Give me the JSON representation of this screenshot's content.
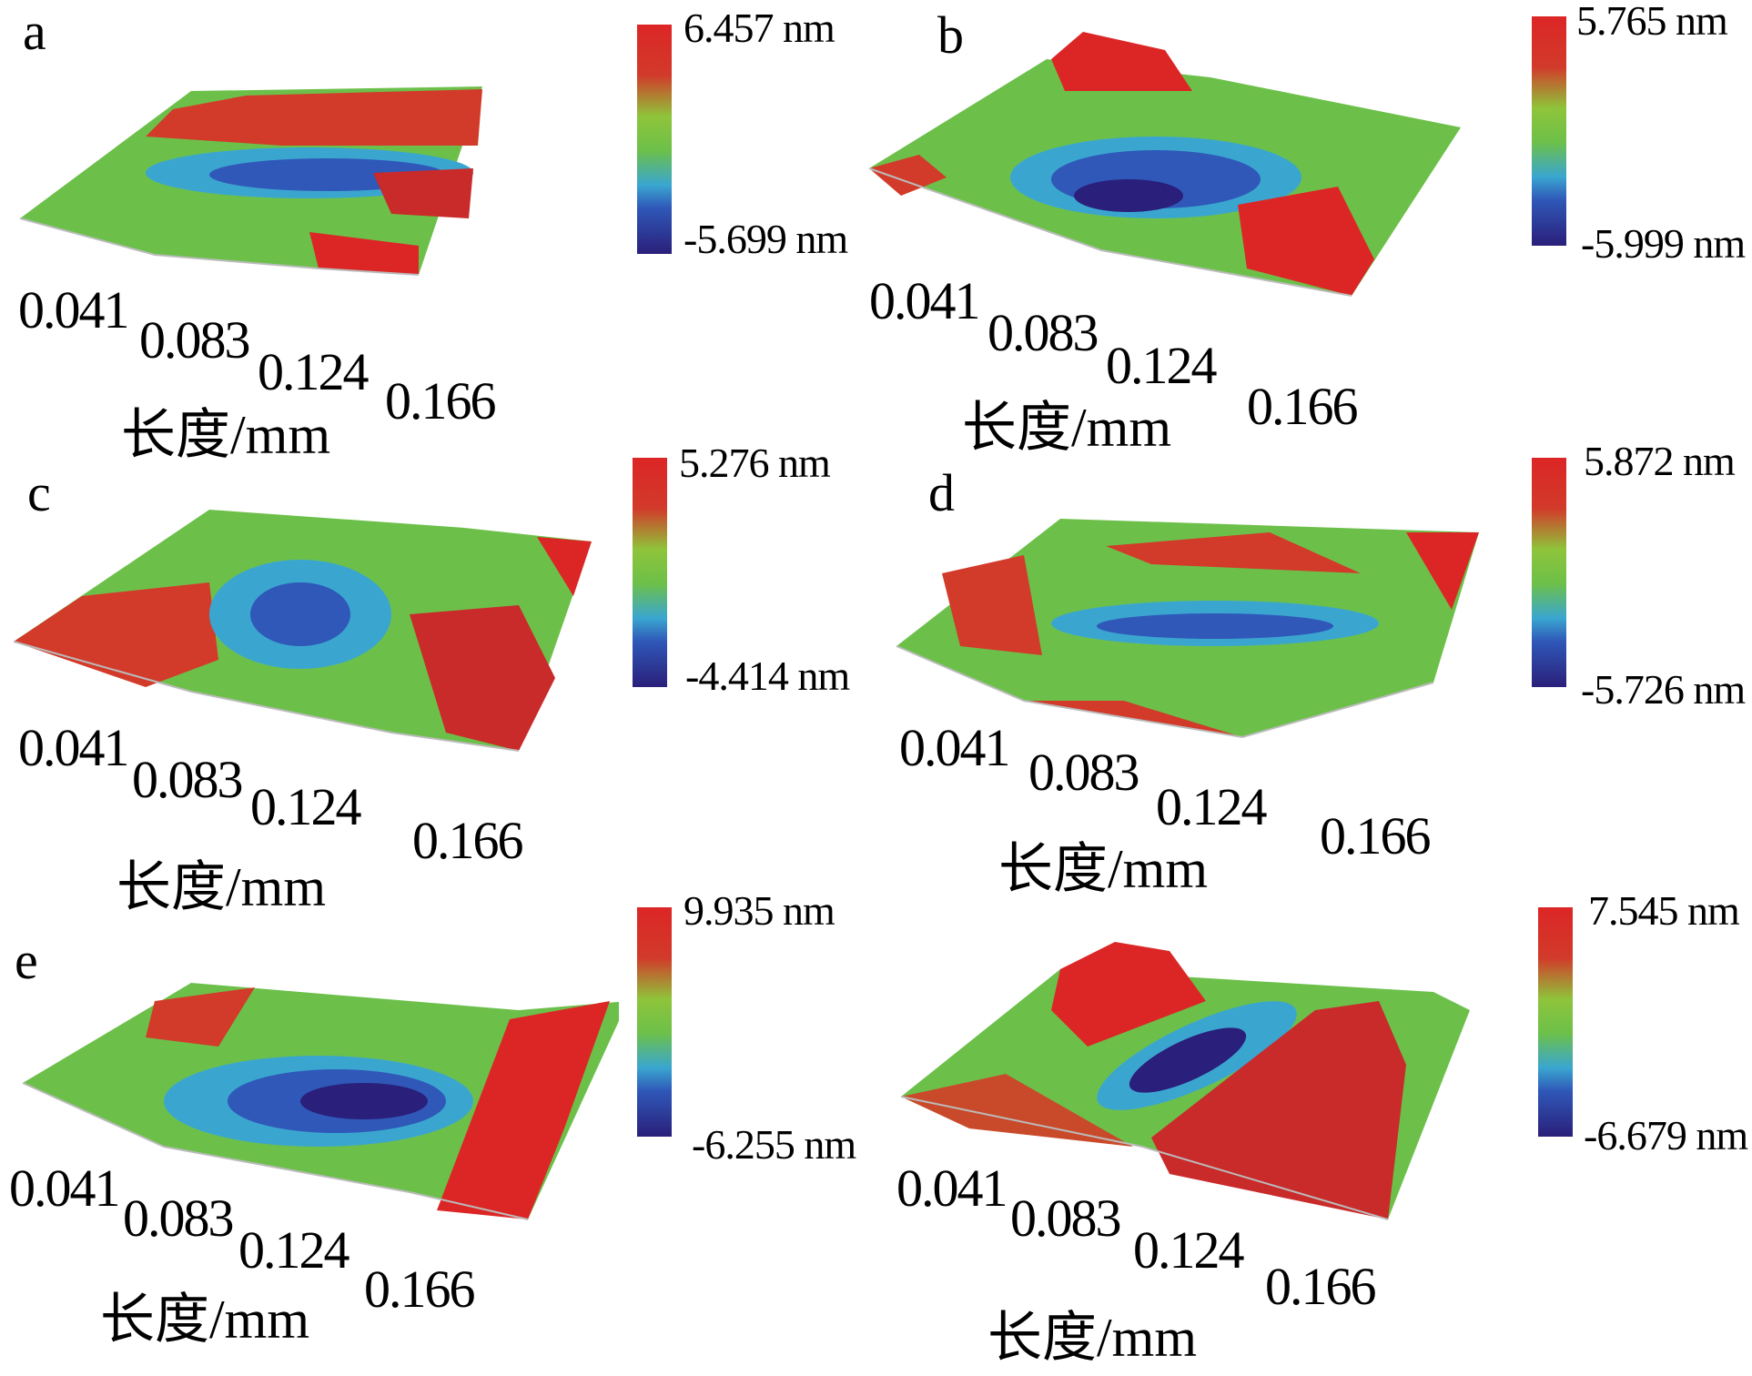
{
  "axis_label": "长度/mm",
  "ticks": [
    "0.041",
    "0.083",
    "0.124",
    "0.166"
  ],
  "colors": {
    "high": "#dc2626",
    "mid": "#6cc04a",
    "low": "#2a1f7a"
  },
  "panels": [
    {
      "letter": "a",
      "max_label": "6.457 nm",
      "min_label": "-5.699 nm"
    },
    {
      "letter": "b",
      "max_label": "5.765 nm",
      "min_label": "-5.999 nm"
    },
    {
      "letter": "c",
      "max_label": "5.276 nm",
      "min_label": "-4.414 nm"
    },
    {
      "letter": "d",
      "max_label": "5.872 nm",
      "min_label": "-5.726 nm"
    },
    {
      "letter": "e",
      "max_label": "9.935 nm",
      "min_label": "-6.255 nm"
    },
    {
      "letter": "",
      "max_label": "7.545 nm",
      "min_label": "-6.679 nm"
    }
  ]
}
